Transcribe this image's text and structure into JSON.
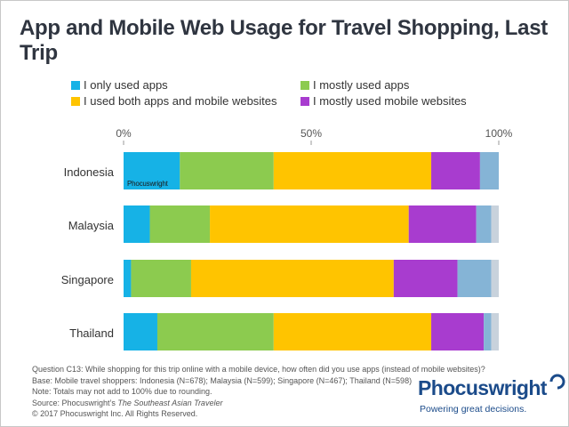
{
  "header": {
    "title": "App and Mobile Web Usage for Travel Shopping, Last Trip"
  },
  "legend": [
    {
      "label": "I only used apps",
      "color": "#16b2e6"
    },
    {
      "label": "I mostly used apps",
      "color": "#8ccb4f"
    },
    {
      "label": "I used both apps and mobile websites",
      "color": "#ffc400"
    },
    {
      "label": "I mostly used mobile websites",
      "color": "#a83ccf"
    }
  ],
  "chart_data": {
    "type": "bar",
    "orientation": "horizontal",
    "stacked": true,
    "title": "App and Mobile Web Usage for Travel Shopping, Last Trip",
    "xlabel": "",
    "ylabel": "",
    "xlim": [
      0,
      100
    ],
    "x_ticks": [
      "0%",
      "50%",
      "100%"
    ],
    "grid": false,
    "legend_position": "top",
    "categories": [
      "Indonesia",
      "Malaysia",
      "Singapore",
      "Thailand"
    ],
    "series": [
      {
        "name": "I only used apps",
        "color": "#16b2e6",
        "values": [
          15,
          7,
          2,
          9
        ]
      },
      {
        "name": "I mostly used apps",
        "color": "#8ccb4f",
        "values": [
          25,
          16,
          16,
          31
        ]
      },
      {
        "name": "I used both apps and mobile websites",
        "color": "#ffc400",
        "values": [
          42,
          53,
          54,
          42
        ]
      },
      {
        "name": "I mostly used mobile websites",
        "color": "#a83ccf",
        "values": [
          13,
          18,
          17,
          14
        ]
      },
      {
        "name": "",
        "color": "#85b4d6",
        "values": [
          5,
          4,
          9,
          2
        ]
      },
      {
        "name": "",
        "color": "#c8d2dc",
        "values": [
          0,
          2,
          2,
          2
        ]
      }
    ]
  },
  "watermark": "Phocuswright",
  "notes": {
    "line1": "Question C13: While shopping for this trip online with a mobile device, how often did you use apps (instead of mobile websites)?",
    "line2": "Base: Mobile travel shoppers: Indonesia (N=678); Malaysia (N=599); Singapore (N=467); Thailand (N=598)",
    "line3": "Note: Totals may not add to 100% due to rounding.",
    "line4_prefix": "Source: Phocuswright’s ",
    "line4_italic": "The Southeast Asian Traveler",
    "line5": "© 2017 Phocuswright Inc. All Rights Reserved."
  },
  "logo": {
    "name": "Phocuswright",
    "tagline": "Powering great decisions."
  }
}
